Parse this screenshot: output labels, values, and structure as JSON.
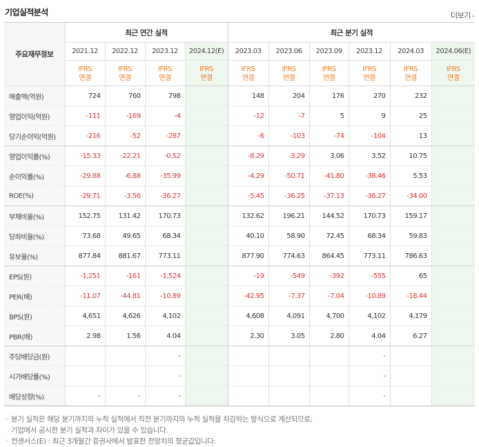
{
  "header": {
    "title": "기업실적분석",
    "more_label": "더보기"
  },
  "table": {
    "corner_label": "주요재무정보",
    "group_annual": "최근 연간 실적",
    "group_quarter": "최근 분기 실적",
    "periods": [
      "2021.12",
      "2022.12",
      "2023.12",
      "2024.12(E)",
      "2023.03",
      "2023.06",
      "2023.09",
      "2023.12",
      "2024.03",
      "2024.06(E)"
    ],
    "standard_top": "IFRS",
    "standard_bottom": "연결",
    "rows": [
      {
        "label": "매출액(억원)",
        "values": [
          "724",
          "760",
          "798",
          "",
          "148",
          "204",
          "176",
          "270",
          "232",
          ""
        ]
      },
      {
        "label": "영업이익(억원)",
        "values": [
          "-111",
          "-169",
          "-4",
          "",
          "-12",
          "-7",
          "5",
          "9",
          "25",
          ""
        ]
      },
      {
        "label": "당기순이익(억원)",
        "values": [
          "-216",
          "-52",
          "-287",
          "",
          "-6",
          "-103",
          "-74",
          "-104",
          "13",
          ""
        ]
      },
      {
        "label": "영업이익률(%)",
        "values": [
          "-15.33",
          "-22.21",
          "-0.52",
          "",
          "-8.29",
          "-3.29",
          "3.06",
          "3.52",
          "10.75",
          ""
        ]
      },
      {
        "label": "순이익률(%)",
        "values": [
          "-29.88",
          "-6.88",
          "-35.99",
          "",
          "-4.29",
          "-50.71",
          "-41.80",
          "-38.46",
          "5.53",
          ""
        ]
      },
      {
        "label": "ROE(%)",
        "values": [
          "-29.71",
          "-3.56",
          "-36.27",
          "",
          "-5.45",
          "-36.25",
          "-37.13",
          "-36.27",
          "-34.00",
          ""
        ]
      },
      {
        "label": "부채비율(%)",
        "values": [
          "152.75",
          "131.42",
          "170.73",
          "",
          "132.62",
          "196.21",
          "144.52",
          "170.73",
          "159.17",
          ""
        ]
      },
      {
        "label": "당좌비율(%)",
        "values": [
          "73.68",
          "49.65",
          "68.34",
          "",
          "40.10",
          "58.90",
          "72.45",
          "68.34",
          "59.83",
          ""
        ]
      },
      {
        "label": "유보율(%)",
        "values": [
          "877.84",
          "881.67",
          "773.11",
          "",
          "877.90",
          "774.63",
          "864.45",
          "773.11",
          "786.63",
          ""
        ]
      },
      {
        "label": "EPS(원)",
        "values": [
          "-1,251",
          "-161",
          "-1,524",
          "",
          "-19",
          "-549",
          "-392",
          "-555",
          "65",
          ""
        ]
      },
      {
        "label": "PER(배)",
        "values": [
          "-11.07",
          "-44.81",
          "-10.89",
          "",
          "-42.95",
          "-7.37",
          "-7.04",
          "-10.89",
          "-18.44",
          ""
        ]
      },
      {
        "label": "BPS(원)",
        "values": [
          "4,651",
          "4,626",
          "4,102",
          "",
          "4,608",
          "4,091",
          "4,700",
          "4,102",
          "4,179",
          ""
        ]
      },
      {
        "label": "PBR(배)",
        "values": [
          "2.98",
          "1.56",
          "4.04",
          "",
          "2.30",
          "3.05",
          "2.80",
          "4.04",
          "6.27",
          ""
        ]
      },
      {
        "label": "주당배당금(원)",
        "values": [
          "",
          "",
          "-",
          "",
          "",
          "",
          "",
          "-",
          "",
          ""
        ]
      },
      {
        "label": "시가배당률(%)",
        "values": [
          "",
          "",
          "-",
          "",
          "",
          "",
          "",
          "-",
          "",
          ""
        ]
      },
      {
        "label": "배당성향(%)",
        "values": [
          "-",
          "-",
          "-",
          "",
          "",
          "",
          "",
          "-",
          "",
          ""
        ]
      }
    ]
  },
  "notes": {
    "note1_line1": "분기 실적은 해당 분기까지의 누적 실적에서 직전 분기까지의 누적 실적을 차감하는 방식으로 계산되므로,",
    "note1_line2": "기업에서 공시한 분기 실적과 차이가 있을 수 있습니다.",
    "note2": "컨센서스(E) : 최근 3개월간 증권사에서 발표한 전망치의 평균값입니다.",
    "bullet": "·"
  },
  "colors": {
    "accent_orange": "#f47a21",
    "negative_red": "#e52f2f",
    "estimate_bg": "#eef7ee"
  }
}
